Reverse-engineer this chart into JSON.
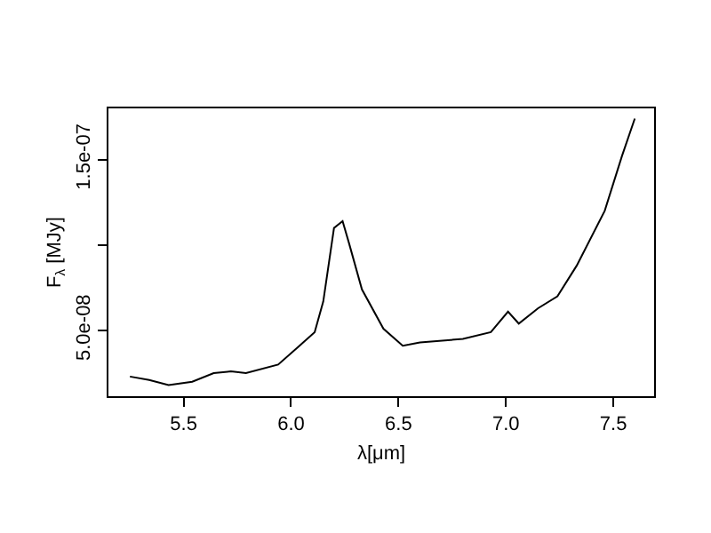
{
  "chart_data": {
    "type": "line",
    "xlabel": "λ[μm]",
    "ylabel": "F$_{λ}$ [MJy]",
    "x": [
      5.25,
      5.34,
      5.43,
      5.54,
      5.64,
      5.72,
      5.79,
      5.94,
      6.03,
      6.11,
      6.15,
      6.2,
      6.24,
      6.27,
      6.33,
      6.43,
      6.52,
      6.6,
      6.8,
      6.93,
      7.01,
      7.06,
      7.15,
      7.24,
      7.33,
      7.46,
      7.54,
      7.6
    ],
    "series": [
      {
        "color": "#000000",
        "values": [
          2.3e-08,
          2.1e-08,
          1.8e-08,
          2e-08,
          2.5e-08,
          2.6e-08,
          2.5e-08,
          3e-08,
          4e-08,
          4.9e-08,
          6.7e-08,
          1.1e-07,
          1.14e-07,
          1.01e-07,
          7.4e-08,
          5.1e-08,
          4.1e-08,
          4.3e-08,
          4.5e-08,
          4.9e-08,
          6.1e-08,
          5.4e-08,
          6.3e-08,
          7e-08,
          8.8e-08,
          1.2e-07,
          1.52e-07,
          1.74e-07
        ]
      }
    ],
    "xlim": [
      5.15,
      7.69
    ],
    "ylim": [
      1.15e-08,
      1.8e-07
    ],
    "xticks": [
      5.5,
      {
        "value": 6,
        "label": "6.0"
      },
      6.5,
      {
        "value": 7,
        "label": "7.0"
      },
      7.5
    ],
    "yticks": [
      {
        "value": 5e-08,
        "label": "5.0e-08"
      },
      {
        "value": 1e-07,
        "label": null
      },
      {
        "value": 1.5e-07,
        "label": "1.5e-07"
      }
    ],
    "grid": false,
    "marker": "none",
    "line_style": "solid"
  }
}
